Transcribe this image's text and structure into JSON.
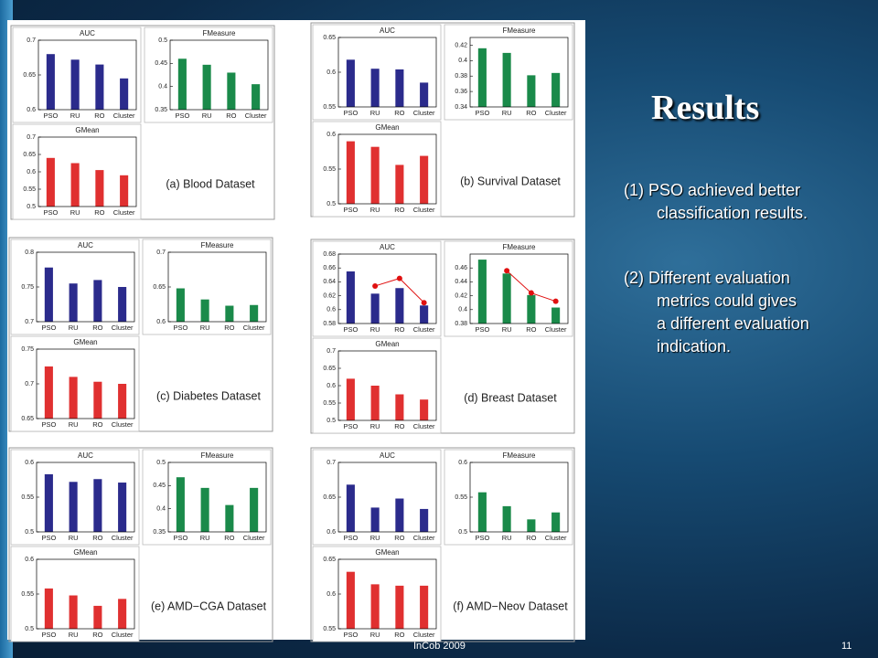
{
  "slide": {
    "title": "Results",
    "bullets": [
      [
        "(1) PSO achieved better",
        "classification results."
      ],
      [
        "(2) Different evaluation",
        "metrics could gives",
        "a different evaluation",
        "indication."
      ]
    ],
    "footer": "InCob 2009",
    "page": "11"
  },
  "panels": [
    {
      "caption": "(a) Blood Dataset"
    },
    {
      "caption": "(b) Survival Dataset"
    },
    {
      "caption": "(c) Diabetes Dataset"
    },
    {
      "caption": "(d) Breast Dataset"
    },
    {
      "caption": "(e) AMD−CGA Dataset"
    },
    {
      "caption": "(f) AMD−Neov Dataset"
    }
  ],
  "chart_data": [
    {
      "type": "bar",
      "title": "AUC",
      "categories": [
        "PSO",
        "RU",
        "RO",
        "Cluster"
      ],
      "values": [
        0.68,
        0.672,
        0.665,
        0.645
      ],
      "color": "#2b2b8c",
      "ylim": [
        0.6,
        0.7
      ],
      "yticks": [
        0.6,
        0.65,
        0.7
      ]
    },
    {
      "type": "bar",
      "title": "FMeasure",
      "categories": [
        "PSO",
        "RU",
        "RO",
        "Cluster"
      ],
      "values": [
        0.46,
        0.447,
        0.43,
        0.405
      ],
      "color": "#1a8a4a",
      "ylim": [
        0.35,
        0.5
      ],
      "yticks": [
        0.35,
        0.4,
        0.45,
        0.5
      ]
    },
    {
      "type": "bar",
      "title": "GMean",
      "categories": [
        "PSO",
        "RU",
        "RO",
        "Cluster"
      ],
      "values": [
        0.64,
        0.625,
        0.605,
        0.59
      ],
      "color": "#e03030",
      "ylim": [
        0.5,
        0.7
      ],
      "yticks": [
        0.5,
        0.55,
        0.6,
        0.65,
        0.7
      ]
    },
    {
      "type": "bar",
      "title": "AUC",
      "categories": [
        "PSO",
        "RU",
        "RO",
        "Cluster"
      ],
      "values": [
        0.618,
        0.605,
        0.604,
        0.585
      ],
      "color": "#2b2b8c",
      "ylim": [
        0.55,
        0.65
      ],
      "yticks": [
        0.55,
        0.6,
        0.65
      ]
    },
    {
      "type": "bar",
      "title": "FMeasure",
      "categories": [
        "PSO",
        "RU",
        "RO",
        "Cluster"
      ],
      "values": [
        0.416,
        0.41,
        0.381,
        0.384
      ],
      "color": "#1a8a4a",
      "ylim": [
        0.34,
        0.43
      ],
      "yticks": [
        0.34,
        0.36,
        0.38,
        0.4,
        0.42
      ]
    },
    {
      "type": "bar",
      "title": "GMean",
      "categories": [
        "PSO",
        "RU",
        "RO",
        "Cluster"
      ],
      "values": [
        0.59,
        0.582,
        0.556,
        0.569
      ],
      "color": "#e03030",
      "ylim": [
        0.5,
        0.6
      ],
      "yticks": [
        0.5,
        0.55,
        0.6
      ]
    },
    {
      "type": "bar",
      "title": "AUC",
      "categories": [
        "PSO",
        "RU",
        "RO",
        "Cluster"
      ],
      "values": [
        0.778,
        0.755,
        0.76,
        0.75
      ],
      "color": "#2b2b8c",
      "ylim": [
        0.7,
        0.8
      ],
      "yticks": [
        0.7,
        0.75,
        0.8
      ]
    },
    {
      "type": "bar",
      "title": "FMeasure",
      "categories": [
        "PSO",
        "RU",
        "RO",
        "Cluster"
      ],
      "values": [
        0.648,
        0.632,
        0.623,
        0.624
      ],
      "color": "#1a8a4a",
      "ylim": [
        0.6,
        0.7
      ],
      "yticks": [
        0.6,
        0.65,
        0.7
      ]
    },
    {
      "type": "bar",
      "title": "GMean",
      "categories": [
        "PSO",
        "RU",
        "RO",
        "Cluster"
      ],
      "values": [
        0.725,
        0.71,
        0.703,
        0.7
      ],
      "color": "#e03030",
      "ylim": [
        0.65,
        0.75
      ],
      "yticks": [
        0.65,
        0.7,
        0.75
      ]
    },
    {
      "type": "bar",
      "title": "AUC",
      "categories": [
        "PSO",
        "RU",
        "RO",
        "Cluster"
      ],
      "values": [
        0.655,
        0.623,
        0.631,
        0.606
      ],
      "color": "#2b2b8c",
      "ylim": [
        0.58,
        0.68
      ],
      "yticks": [
        0.58,
        0.6,
        0.62,
        0.64,
        0.66,
        0.68
      ],
      "overlay": {
        "color": "#e01010",
        "values": [
          null,
          0.634,
          0.645,
          0.61
        ]
      }
    },
    {
      "type": "bar",
      "title": "FMeasure",
      "categories": [
        "PSO",
        "RU",
        "RO",
        "Cluster"
      ],
      "values": [
        0.472,
        0.452,
        0.421,
        0.403
      ],
      "color": "#1a8a4a",
      "ylim": [
        0.38,
        0.48
      ],
      "yticks": [
        0.38,
        0.4,
        0.42,
        0.44,
        0.46
      ],
      "overlay": {
        "color": "#e01010",
        "values": [
          null,
          0.456,
          0.424,
          0.412
        ]
      }
    },
    {
      "type": "bar",
      "title": "GMean",
      "categories": [
        "PSO",
        "RU",
        "RO",
        "Cluster"
      ],
      "values": [
        0.62,
        0.6,
        0.575,
        0.56
      ],
      "color": "#e03030",
      "ylim": [
        0.5,
        0.7
      ],
      "yticks": [
        0.5,
        0.55,
        0.6,
        0.65,
        0.7
      ]
    },
    {
      "type": "bar",
      "title": "AUC",
      "categories": [
        "PSO",
        "RU",
        "RO",
        "Cluster"
      ],
      "values": [
        0.583,
        0.572,
        0.576,
        0.571
      ],
      "color": "#2b2b8c",
      "ylim": [
        0.5,
        0.6
      ],
      "yticks": [
        0.5,
        0.55,
        0.6
      ]
    },
    {
      "type": "bar",
      "title": "FMeasure",
      "categories": [
        "PSO",
        "RU",
        "RO",
        "Cluster"
      ],
      "values": [
        0.468,
        0.445,
        0.408,
        0.445
      ],
      "color": "#1a8a4a",
      "ylim": [
        0.35,
        0.5
      ],
      "yticks": [
        0.35,
        0.4,
        0.45,
        0.5
      ]
    },
    {
      "type": "bar",
      "title": "GMean",
      "categories": [
        "PSO",
        "RU",
        "RO",
        "Cluster"
      ],
      "values": [
        0.558,
        0.548,
        0.533,
        0.543
      ],
      "color": "#e03030",
      "ylim": [
        0.5,
        0.6
      ],
      "yticks": [
        0.5,
        0.55,
        0.6
      ]
    },
    {
      "type": "bar",
      "title": "AUC",
      "categories": [
        "PSO",
        "RU",
        "RO",
        "Cluster"
      ],
      "values": [
        0.668,
        0.635,
        0.648,
        0.633
      ],
      "color": "#2b2b8c",
      "ylim": [
        0.6,
        0.7
      ],
      "yticks": [
        0.6,
        0.65,
        0.7
      ]
    },
    {
      "type": "bar",
      "title": "FMeasure",
      "categories": [
        "PSO",
        "RU",
        "RO",
        "Cluster"
      ],
      "values": [
        0.557,
        0.537,
        0.518,
        0.528
      ],
      "color": "#1a8a4a",
      "ylim": [
        0.5,
        0.6
      ],
      "yticks": [
        0.5,
        0.55,
        0.6
      ]
    },
    {
      "type": "bar",
      "title": "GMean",
      "categories": [
        "PSO",
        "RU",
        "RO",
        "Cluster"
      ],
      "values": [
        0.632,
        0.614,
        0.612,
        0.612
      ],
      "color": "#e03030",
      "ylim": [
        0.55,
        0.65
      ],
      "yticks": [
        0.55,
        0.6,
        0.65
      ]
    }
  ]
}
